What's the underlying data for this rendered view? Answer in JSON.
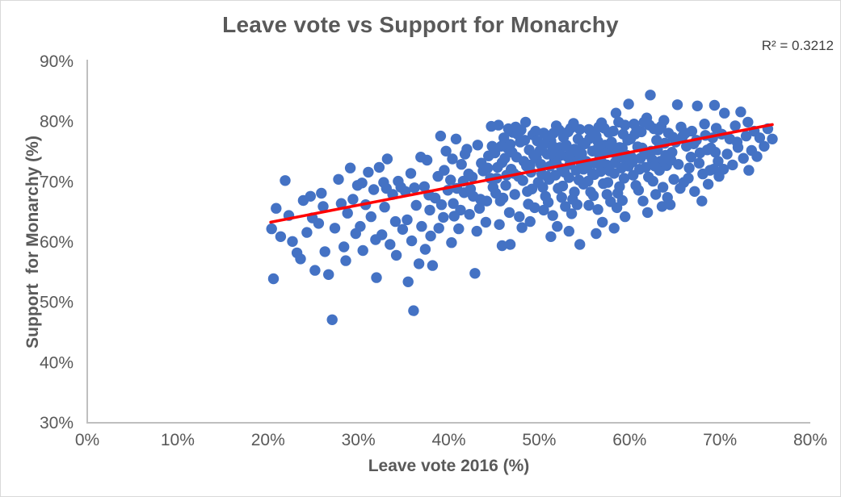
{
  "chart_data": {
    "type": "scatter",
    "title": "Leave vote vs Support for Monarchy",
    "r_squared_text": "R² = 0.3212",
    "r_squared": 0.3212,
    "xlabel": "Leave vote 2016 (%)",
    "ylabel": "Support  for Monarchy (%)",
    "xlim": [
      0,
      80
    ],
    "ylim": [
      30,
      90
    ],
    "grid": false,
    "legend": "none",
    "x_ticks": [
      {
        "value": 0,
        "label": "0%"
      },
      {
        "value": 10,
        "label": "10%"
      },
      {
        "value": 20,
        "label": "20%"
      },
      {
        "value": 30,
        "label": "30%"
      },
      {
        "value": 40,
        "label": "40%"
      },
      {
        "value": 50,
        "label": "50%"
      },
      {
        "value": 60,
        "label": "60%"
      },
      {
        "value": 70,
        "label": "70%"
      },
      {
        "value": 80,
        "label": "80%"
      }
    ],
    "y_ticks": [
      {
        "value": 30,
        "label": "30%"
      },
      {
        "value": 40,
        "label": "40%"
      },
      {
        "value": 50,
        "label": "50%"
      },
      {
        "value": 60,
        "label": "60%"
      },
      {
        "value": 70,
        "label": "70%"
      },
      {
        "value": 80,
        "label": "80%"
      },
      {
        "value": 90,
        "label": "90%"
      }
    ],
    "colors": {
      "point": "#4472C4",
      "trendline": "#FF0000",
      "axis_line": "#BFBFBF",
      "text": "#595959",
      "title_text": "#595959"
    },
    "trendline": {
      "x1": 20.3,
      "y1": 63.3,
      "x2": 75.8,
      "y2": 79.5
    },
    "points": [
      [
        20.4,
        62.2
      ],
      [
        20.6,
        53.9
      ],
      [
        20.9,
        65.6
      ],
      [
        21.4,
        60.9
      ],
      [
        21.9,
        70.2
      ],
      [
        22.3,
        64.4
      ],
      [
        22.7,
        60.1
      ],
      [
        23.2,
        58.2
      ],
      [
        23.6,
        57.2
      ],
      [
        23.9,
        66.9
      ],
      [
        24.3,
        61.6
      ],
      [
        24.7,
        67.6
      ],
      [
        24.9,
        64.0
      ],
      [
        25.2,
        55.3
      ],
      [
        25.6,
        63.1
      ],
      [
        25.9,
        68.1
      ],
      [
        26.3,
        58.4
      ],
      [
        26.7,
        54.6
      ],
      [
        27.1,
        47.1
      ],
      [
        27.4,
        62.3
      ],
      [
        27.8,
        70.4
      ],
      [
        28.1,
        66.4
      ],
      [
        28.4,
        59.2
      ],
      [
        28.8,
        64.8
      ],
      [
        29.1,
        72.3
      ],
      [
        29.4,
        67.1
      ],
      [
        29.7,
        61.4
      ],
      [
        29.9,
        69.4
      ],
      [
        26.1,
        65.9
      ],
      [
        28.6,
        56.9
      ],
      [
        30.2,
        62.6
      ],
      [
        30.5,
        58.6
      ],
      [
        30.8,
        66.2
      ],
      [
        31.1,
        71.6
      ],
      [
        31.4,
        64.2
      ],
      [
        31.7,
        68.7
      ],
      [
        32.0,
        54.1
      ],
      [
        32.3,
        72.4
      ],
      [
        32.6,
        61.2
      ],
      [
        32.9,
        65.8
      ],
      [
        33.2,
        73.8
      ],
      [
        33.5,
        59.6
      ],
      [
        33.8,
        67.9
      ],
      [
        34.1,
        63.4
      ],
      [
        34.4,
        70.1
      ],
      [
        34.7,
        69.1
      ],
      [
        34.9,
        62.1
      ],
      [
        30.4,
        69.8
      ],
      [
        31.9,
        60.4
      ],
      [
        33.1,
        68.9
      ],
      [
        34.2,
        57.8
      ],
      [
        32.8,
        69.9
      ],
      [
        35.2,
        68.4
      ],
      [
        35.5,
        53.4
      ],
      [
        35.8,
        71.4
      ],
      [
        36.1,
        48.6
      ],
      [
        36.4,
        66.1
      ],
      [
        36.7,
        56.4
      ],
      [
        37.0,
        62.6
      ],
      [
        37.3,
        69.2
      ],
      [
        37.6,
        73.6
      ],
      [
        37.9,
        65.3
      ],
      [
        38.2,
        56.1
      ],
      [
        38.5,
        67.3
      ],
      [
        38.8,
        70.9
      ],
      [
        39.1,
        77.6
      ],
      [
        39.4,
        64.1
      ],
      [
        39.7,
        75.1
      ],
      [
        39.9,
        68.6
      ],
      [
        35.4,
        63.7
      ],
      [
        36.9,
        74.1
      ],
      [
        38.0,
        61.0
      ],
      [
        39.5,
        71.9
      ],
      [
        35.9,
        60.2
      ],
      [
        37.8,
        67.8
      ],
      [
        38.9,
        62.3
      ],
      [
        36.2,
        69.0
      ],
      [
        39.2,
        66.2
      ],
      [
        37.4,
        58.8
      ],
      [
        40.2,
        70.3
      ],
      [
        40.5,
        66.4
      ],
      [
        40.8,
        77.1
      ],
      [
        41.1,
        62.2
      ],
      [
        41.4,
        72.9
      ],
      [
        41.7,
        68.2
      ],
      [
        42.0,
        75.4
      ],
      [
        42.3,
        64.6
      ],
      [
        42.6,
        70.8
      ],
      [
        42.9,
        54.8
      ],
      [
        43.2,
        76.1
      ],
      [
        43.5,
        67.1
      ],
      [
        43.8,
        71.8
      ],
      [
        44.1,
        63.3
      ],
      [
        44.4,
        74.3
      ],
      [
        44.7,
        79.2
      ],
      [
        44.9,
        69.1
      ],
      [
        40.4,
        73.8
      ],
      [
        41.3,
        65.3
      ],
      [
        42.2,
        71.3
      ],
      [
        43.1,
        61.8
      ],
      [
        44.2,
        66.8
      ],
      [
        40.9,
        68.9
      ],
      [
        41.8,
        74.6
      ],
      [
        42.7,
        67.6
      ],
      [
        43.6,
        73.1
      ],
      [
        44.6,
        70.6
      ],
      [
        40.6,
        64.3
      ],
      [
        41.6,
        70.1
      ],
      [
        42.4,
        68.8
      ],
      [
        43.4,
        65.6
      ],
      [
        44.3,
        72.3
      ],
      [
        40.3,
        59.9
      ],
      [
        44.8,
        75.9
      ],
      [
        45.1,
        74.8
      ],
      [
        45.3,
        70.6
      ],
      [
        45.5,
        79.4
      ],
      [
        45.7,
        66.8
      ],
      [
        45.9,
        73.2
      ],
      [
        46.1,
        77.3
      ],
      [
        46.3,
        69.4
      ],
      [
        46.5,
        75.6
      ],
      [
        46.7,
        64.9
      ],
      [
        46.9,
        72.1
      ],
      [
        47.1,
        78.2
      ],
      [
        47.3,
        67.9
      ],
      [
        47.5,
        74.1
      ],
      [
        47.7,
        70.9
      ],
      [
        47.9,
        76.6
      ],
      [
        48.1,
        62.4
      ],
      [
        48.3,
        73.4
      ],
      [
        48.5,
        79.9
      ],
      [
        48.7,
        68.4
      ],
      [
        48.9,
        75.3
      ],
      [
        49.1,
        71.6
      ],
      [
        49.3,
        77.8
      ],
      [
        49.5,
        65.7
      ],
      [
        49.7,
        73.9
      ],
      [
        49.9,
        69.9
      ],
      [
        45.4,
        72.4
      ],
      [
        46.0,
        67.3
      ],
      [
        46.6,
        78.8
      ],
      [
        47.2,
        71.4
      ],
      [
        47.8,
        64.2
      ],
      [
        48.4,
        76.9
      ],
      [
        49.0,
        72.8
      ],
      [
        49.6,
        78.4
      ],
      [
        45.8,
        75.9
      ],
      [
        46.4,
        71.1
      ],
      [
        47.0,
        74.9
      ],
      [
        47.6,
        77.9
      ],
      [
        48.2,
        70.2
      ],
      [
        48.8,
        66.3
      ],
      [
        49.4,
        74.4
      ],
      [
        45.2,
        68.1
      ],
      [
        46.8,
        76.2
      ],
      [
        48.6,
        72.6
      ],
      [
        49.8,
        76.8
      ],
      [
        45.6,
        62.9
      ],
      [
        47.4,
        79.1
      ],
      [
        49.2,
        68.8
      ],
      [
        46.2,
        73.9
      ],
      [
        48.0,
        78.6
      ],
      [
        49.0,
        63.4
      ],
      [
        45.9,
        59.4
      ],
      [
        46.8,
        59.6
      ],
      [
        50.1,
        75.2
      ],
      [
        50.3,
        71.3
      ],
      [
        50.5,
        78.1
      ],
      [
        50.7,
        67.6
      ],
      [
        50.9,
        74.6
      ],
      [
        51.1,
        70.4
      ],
      [
        51.3,
        76.8
      ],
      [
        51.5,
        64.4
      ],
      [
        51.7,
        73.6
      ],
      [
        51.9,
        79.3
      ],
      [
        52.1,
        68.9
      ],
      [
        52.3,
        75.7
      ],
      [
        52.5,
        72.2
      ],
      [
        52.7,
        77.4
      ],
      [
        52.9,
        65.9
      ],
      [
        53.1,
        74.2
      ],
      [
        53.3,
        70.7
      ],
      [
        53.5,
        78.9
      ],
      [
        53.7,
        67.1
      ],
      [
        53.9,
        75.4
      ],
      [
        54.1,
        71.9
      ],
      [
        54.3,
        77.1
      ],
      [
        54.5,
        59.6
      ],
      [
        54.7,
        74.7
      ],
      [
        54.9,
        69.6
      ],
      [
        50.2,
        72.9
      ],
      [
        50.6,
        76.3
      ],
      [
        51.0,
        66.6
      ],
      [
        51.4,
        74.9
      ],
      [
        51.8,
        71.1
      ],
      [
        52.2,
        78.6
      ],
      [
        52.6,
        69.3
      ],
      [
        53.0,
        76.1
      ],
      [
        53.4,
        72.9
      ],
      [
        53.8,
        79.7
      ],
      [
        54.2,
        66.2
      ],
      [
        54.6,
        73.3
      ],
      [
        50.4,
        69.1
      ],
      [
        50.8,
        77.7
      ],
      [
        51.2,
        72.6
      ],
      [
        51.6,
        78.1
      ],
      [
        52.0,
        62.6
      ],
      [
        52.4,
        74.4
      ],
      [
        52.8,
        71.6
      ],
      [
        53.2,
        78.3
      ],
      [
        53.6,
        64.7
      ],
      [
        54.0,
        73.9
      ],
      [
        54.4,
        70.3
      ],
      [
        54.8,
        76.4
      ],
      [
        50.5,
        65.3
      ],
      [
        51.5,
        75.9
      ],
      [
        52.5,
        67.4
      ],
      [
        53.5,
        74.6
      ],
      [
        54.5,
        78.7
      ],
      [
        50.9,
        70.9
      ],
      [
        51.9,
        73.1
      ],
      [
        52.9,
        75.9
      ],
      [
        53.9,
        68.3
      ],
      [
        54.9,
        72.1
      ],
      [
        51.3,
        60.9
      ],
      [
        53.3,
        61.8
      ],
      [
        54.2,
        75.1
      ],
      [
        55.1,
        76.3
      ],
      [
        55.3,
        72.4
      ],
      [
        55.5,
        78.7
      ],
      [
        55.7,
        68.3
      ],
      [
        55.9,
        75.1
      ],
      [
        56.1,
        71.2
      ],
      [
        56.3,
        77.6
      ],
      [
        56.5,
        65.4
      ],
      [
        56.7,
        74.3
      ],
      [
        56.9,
        79.8
      ],
      [
        57.1,
        69.7
      ],
      [
        57.3,
        76.1
      ],
      [
        57.5,
        72.8
      ],
      [
        57.7,
        78.2
      ],
      [
        57.9,
        66.7
      ],
      [
        58.1,
        74.9
      ],
      [
        58.3,
        71.4
      ],
      [
        58.5,
        81.4
      ],
      [
        58.7,
        68.1
      ],
      [
        58.9,
        75.7
      ],
      [
        59.1,
        72.3
      ],
      [
        59.3,
        77.9
      ],
      [
        59.5,
        64.2
      ],
      [
        59.7,
        74.4
      ],
      [
        59.9,
        82.9
      ],
      [
        55.2,
        73.4
      ],
      [
        55.6,
        77.2
      ],
      [
        56.0,
        67.7
      ],
      [
        56.4,
        75.4
      ],
      [
        56.8,
        71.7
      ],
      [
        57.2,
        78.9
      ],
      [
        57.6,
        69.9
      ],
      [
        58.0,
        76.6
      ],
      [
        58.4,
        73.2
      ],
      [
        58.8,
        79.9
      ],
      [
        59.2,
        66.9
      ],
      [
        59.6,
        73.7
      ],
      [
        55.4,
        70.1
      ],
      [
        55.8,
        78.1
      ],
      [
        56.2,
        73.1
      ],
      [
        56.6,
        79.1
      ],
      [
        57.0,
        63.3
      ],
      [
        57.4,
        74.8
      ],
      [
        57.8,
        71.8
      ],
      [
        58.2,
        78.4
      ],
      [
        58.6,
        65.7
      ],
      [
        59.0,
        74.1
      ],
      [
        59.4,
        70.6
      ],
      [
        59.8,
        76.9
      ],
      [
        55.5,
        66.1
      ],
      [
        56.5,
        76.7
      ],
      [
        57.5,
        67.9
      ],
      [
        58.5,
        74.6
      ],
      [
        59.5,
        79.4
      ],
      [
        55.9,
        71.4
      ],
      [
        56.9,
        73.3
      ],
      [
        57.9,
        76.2
      ],
      [
        58.9,
        69.2
      ],
      [
        59.9,
        72.6
      ],
      [
        56.3,
        61.4
      ],
      [
        58.3,
        62.3
      ],
      [
        59.2,
        75.6
      ],
      [
        60.1,
        77.1
      ],
      [
        60.3,
        73.3
      ],
      [
        60.5,
        79.6
      ],
      [
        60.7,
        69.4
      ],
      [
        60.9,
        75.8
      ],
      [
        61.1,
        72.1
      ],
      [
        61.3,
        78.3
      ],
      [
        61.5,
        66.8
      ],
      [
        61.7,
        74.6
      ],
      [
        61.9,
        80.6
      ],
      [
        62.1,
        70.8
      ],
      [
        62.3,
        84.4
      ],
      [
        62.5,
        73.7
      ],
      [
        62.7,
        78.8
      ],
      [
        62.9,
        67.9
      ],
      [
        63.1,
        75.3
      ],
      [
        63.3,
        71.9
      ],
      [
        63.5,
        79.2
      ],
      [
        63.7,
        69.1
      ],
      [
        63.9,
        76.4
      ],
      [
        64.1,
        72.7
      ],
      [
        64.3,
        78.1
      ],
      [
        64.5,
        66.2
      ],
      [
        64.7,
        74.9
      ],
      [
        64.9,
        70.4
      ],
      [
        60.2,
        74.1
      ],
      [
        60.6,
        77.9
      ],
      [
        61.0,
        68.6
      ],
      [
        61.4,
        75.6
      ],
      [
        61.8,
        72.4
      ],
      [
        62.2,
        79.4
      ],
      [
        62.6,
        70.1
      ],
      [
        63.0,
        76.9
      ],
      [
        63.4,
        73.4
      ],
      [
        63.8,
        80.2
      ],
      [
        64.2,
        67.4
      ],
      [
        64.6,
        73.6
      ],
      [
        60.4,
        71.1
      ],
      [
        60.8,
        78.6
      ],
      [
        61.2,
        73.9
      ],
      [
        61.6,
        79.9
      ],
      [
        62.0,
        64.9
      ],
      [
        62.4,
        75.1
      ],
      [
        62.8,
        72.6
      ],
      [
        63.2,
        78.6
      ],
      [
        63.6,
        65.9
      ],
      [
        64.0,
        74.4
      ],
      [
        64.8,
        77.4
      ],
      [
        65.1,
        76.6
      ],
      [
        65.4,
        72.9
      ],
      [
        65.7,
        79.1
      ],
      [
        66.0,
        69.9
      ],
      [
        66.3,
        75.9
      ],
      [
        66.6,
        72.3
      ],
      [
        66.9,
        78.4
      ],
      [
        67.2,
        68.4
      ],
      [
        67.5,
        82.6
      ],
      [
        67.8,
        74.8
      ],
      [
        68.1,
        71.3
      ],
      [
        68.4,
        77.7
      ],
      [
        68.7,
        69.6
      ],
      [
        69.0,
        75.6
      ],
      [
        69.3,
        72.1
      ],
      [
        69.6,
        78.9
      ],
      [
        69.9,
        70.9
      ],
      [
        65.3,
        82.8
      ],
      [
        65.9,
        77.6
      ],
      [
        66.5,
        70.6
      ],
      [
        67.1,
        76.3
      ],
      [
        67.7,
        73.1
      ],
      [
        68.3,
        79.6
      ],
      [
        68.9,
        71.9
      ],
      [
        69.5,
        74.9
      ],
      [
        65.6,
        68.9
      ],
      [
        66.2,
        78.1
      ],
      [
        66.8,
        74.1
      ],
      [
        67.4,
        76.9
      ],
      [
        68.0,
        66.8
      ],
      [
        68.6,
        75.3
      ],
      [
        69.2,
        77.3
      ],
      [
        69.8,
        73.4
      ],
      [
        69.4,
        82.7
      ],
      [
        70.2,
        77.9
      ],
      [
        70.5,
        81.4
      ],
      [
        70.8,
        74.6
      ],
      [
        71.1,
        77.1
      ],
      [
        71.4,
        72.8
      ],
      [
        71.7,
        79.3
      ],
      [
        72.0,
        75.7
      ],
      [
        72.3,
        81.6
      ],
      [
        72.6,
        73.9
      ],
      [
        72.9,
        77.6
      ],
      [
        73.2,
        71.9
      ],
      [
        73.5,
        75.2
      ],
      [
        73.8,
        78.4
      ],
      [
        74.1,
        74.2
      ],
      [
        74.4,
        77.3
      ],
      [
        74.9,
        75.9
      ],
      [
        75.3,
        78.8
      ],
      [
        75.8,
        77.1
      ],
      [
        70.4,
        72.1
      ],
      [
        71.9,
        76.6
      ],
      [
        73.1,
        79.9
      ]
    ]
  }
}
